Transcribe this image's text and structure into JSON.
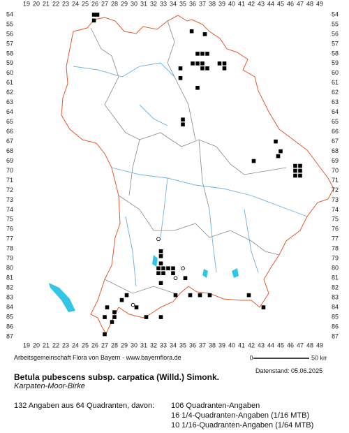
{
  "map": {
    "x_labels": [
      19,
      20,
      21,
      22,
      23,
      24,
      25,
      26,
      27,
      28,
      29,
      30,
      31,
      32,
      33,
      34,
      35,
      36,
      37,
      38,
      39,
      40,
      41,
      42,
      43,
      44,
      45,
      46,
      47,
      48,
      49
    ],
    "y_labels": [
      54,
      55,
      56,
      57,
      58,
      59,
      60,
      61,
      62,
      63,
      64,
      65,
      66,
      67,
      68,
      69,
      70,
      71,
      72,
      73,
      74,
      75,
      76,
      77,
      78,
      79,
      80,
      81,
      82,
      83,
      84,
      85,
      86,
      87
    ],
    "occurrences": [
      {
        "x": 25.9,
        "y": 54.0,
        "symbol": "square"
      },
      {
        "x": 26.25,
        "y": 54.0,
        "symbol": "square"
      },
      {
        "x": 25.9,
        "y": 54.6,
        "symbol": "square"
      },
      {
        "x": 35.9,
        "y": 55.7,
        "symbol": "square"
      },
      {
        "x": 37.25,
        "y": 56.0,
        "symbol": "square"
      },
      {
        "x": 36.5,
        "y": 58.0,
        "symbol": "square"
      },
      {
        "x": 37.0,
        "y": 58.0,
        "symbol": "square"
      },
      {
        "x": 37.5,
        "y": 58.0,
        "symbol": "square"
      },
      {
        "x": 36.0,
        "y": 59.0,
        "symbol": "square"
      },
      {
        "x": 36.5,
        "y": 59.0,
        "symbol": "square"
      },
      {
        "x": 37.0,
        "y": 59.0,
        "symbol": "square"
      },
      {
        "x": 38.75,
        "y": 59.0,
        "symbol": "square"
      },
      {
        "x": 39.25,
        "y": 59.0,
        "symbol": "square"
      },
      {
        "x": 37.0,
        "y": 59.5,
        "symbol": "square"
      },
      {
        "x": 37.5,
        "y": 59.5,
        "symbol": "square"
      },
      {
        "x": 39.25,
        "y": 59.5,
        "symbol": "square"
      },
      {
        "x": 34.75,
        "y": 59.5,
        "symbol": "square"
      },
      {
        "x": 34.75,
        "y": 60.5,
        "symbol": "square"
      },
      {
        "x": 36.5,
        "y": 61.5,
        "symbol": "square"
      },
      {
        "x": 35.0,
        "y": 64.75,
        "symbol": "square"
      },
      {
        "x": 35.0,
        "y": 65.25,
        "symbol": "square"
      },
      {
        "x": 44.5,
        "y": 67.0,
        "symbol": "square"
      },
      {
        "x": 45.0,
        "y": 68.0,
        "symbol": "square"
      },
      {
        "x": 44.75,
        "y": 68.5,
        "symbol": "square"
      },
      {
        "x": 42.25,
        "y": 69.0,
        "symbol": "square"
      },
      {
        "x": 46.5,
        "y": 69.5,
        "symbol": "square"
      },
      {
        "x": 47.0,
        "y": 69.5,
        "symbol": "square"
      },
      {
        "x": 46.5,
        "y": 70.0,
        "symbol": "square"
      },
      {
        "x": 47.0,
        "y": 70.0,
        "symbol": "square"
      },
      {
        "x": 46.5,
        "y": 70.5,
        "symbol": "square"
      },
      {
        "x": 47.0,
        "y": 70.5,
        "symbol": "square"
      },
      {
        "x": 32.5,
        "y": 77.0,
        "symbol": "circle"
      },
      {
        "x": 32.75,
        "y": 78.25,
        "symbol": "square"
      },
      {
        "x": 32.75,
        "y": 78.75,
        "symbol": "square"
      },
      {
        "x": 32.75,
        "y": 79.5,
        "symbol": "square"
      },
      {
        "x": 32.5,
        "y": 80.0,
        "symbol": "square"
      },
      {
        "x": 33.0,
        "y": 80.0,
        "symbol": "square"
      },
      {
        "x": 33.5,
        "y": 80.0,
        "symbol": "square"
      },
      {
        "x": 32.5,
        "y": 80.5,
        "symbol": "square"
      },
      {
        "x": 33.0,
        "y": 80.5,
        "symbol": "square"
      },
      {
        "x": 34.0,
        "y": 80.0,
        "symbol": "square"
      },
      {
        "x": 34.0,
        "y": 80.5,
        "symbol": "square"
      },
      {
        "x": 35.0,
        "y": 80.0,
        "symbol": "circle"
      },
      {
        "x": 34.25,
        "y": 81.0,
        "symbol": "circle"
      },
      {
        "x": 35.25,
        "y": 81.0,
        "symbol": "square"
      },
      {
        "x": 32.75,
        "y": 81.5,
        "symbol": "square"
      },
      {
        "x": 34.25,
        "y": 82.75,
        "symbol": "square"
      },
      {
        "x": 35.75,
        "y": 82.75,
        "symbol": "square"
      },
      {
        "x": 36.75,
        "y": 82.75,
        "symbol": "square"
      },
      {
        "x": 37.75,
        "y": 82.75,
        "symbol": "square"
      },
      {
        "x": 41.75,
        "y": 82.75,
        "symbol": "square"
      },
      {
        "x": 43.25,
        "y": 84.0,
        "symbol": "square"
      },
      {
        "x": 29.25,
        "y": 82.75,
        "symbol": "square"
      },
      {
        "x": 28.75,
        "y": 83.25,
        "symbol": "square"
      },
      {
        "x": 29.9,
        "y": 83.75,
        "symbol": "circle"
      },
      {
        "x": 30.25,
        "y": 84.0,
        "symbol": "square"
      },
      {
        "x": 27.25,
        "y": 84.0,
        "symbol": "square"
      },
      {
        "x": 28.0,
        "y": 84.5,
        "symbol": "square"
      },
      {
        "x": 27.0,
        "y": 85.0,
        "symbol": "square"
      },
      {
        "x": 28.0,
        "y": 85.0,
        "symbol": "square"
      },
      {
        "x": 27.75,
        "y": 85.5,
        "symbol": "square"
      },
      {
        "x": 31.25,
        "y": 85.0,
        "symbol": "square"
      },
      {
        "x": 32.75,
        "y": 85.0,
        "symbol": "square"
      },
      {
        "x": 27.0,
        "y": 86.75,
        "symbol": "square"
      }
    ]
  },
  "footer": {
    "credit": "Arbeitsgemeinschaft Flora von Bayern - www.bayernflora.de",
    "scale_start": "0",
    "scale_end": "50 km",
    "date": "Datenstand: 05.06.2025",
    "title": "Betula pubescens subsp. carpatica (Willd.) Simonk.",
    "subtitle": "Karpaten-Moor-Birke",
    "summary": "132 Angaben aus 64 Quadranten, davon:",
    "details": [
      "106 Quadranten-Angaben",
      "16 1/4-Quadranten-Angaben (1/16 MTB)",
      "10 1/16-Quadranten-Angaben (1/64 MTB)"
    ]
  }
}
